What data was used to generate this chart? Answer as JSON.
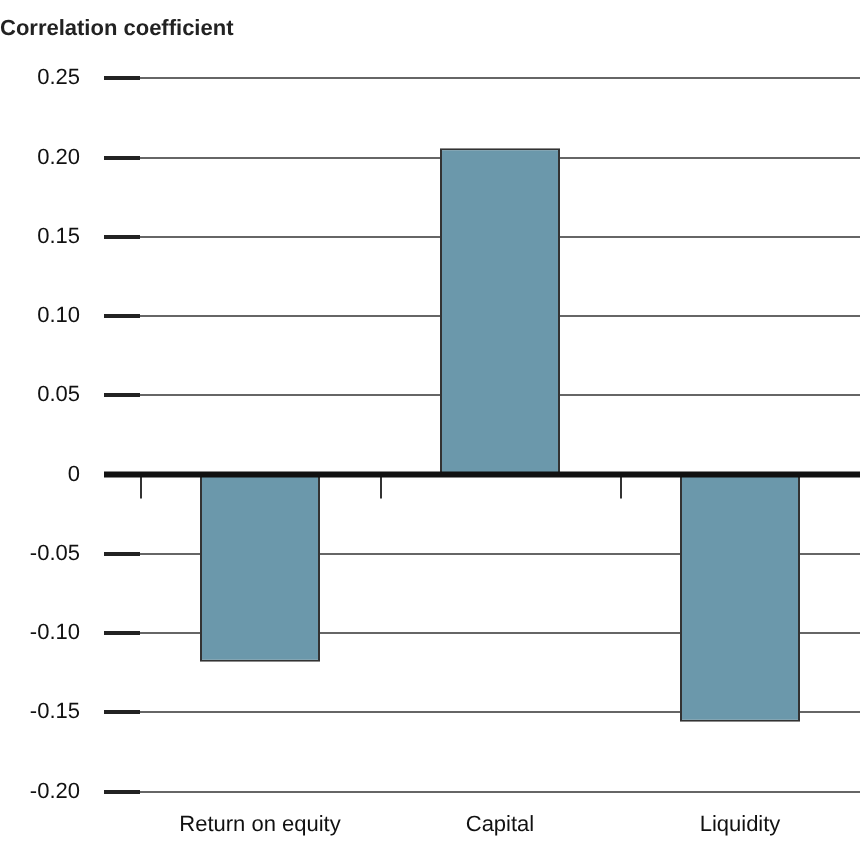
{
  "chart_data": {
    "type": "bar",
    "ylabel": "Correlation coefficient",
    "categories": [
      "Return on equity",
      "Capital",
      "Liquidity"
    ],
    "values": [
      -0.118,
      0.206,
      -0.156
    ],
    "color": "#6b98ab",
    "ylim": [
      -0.2,
      0.25
    ],
    "yticks": [
      {
        "value": -0.2,
        "label": "-0.20"
      },
      {
        "value": -0.15,
        "label": "-0.15"
      },
      {
        "value": -0.1,
        "label": "-0.10"
      },
      {
        "value": -0.05,
        "label": "-0.05"
      },
      0,
      {
        "value": 0.05,
        "label": "0.05"
      },
      {
        "value": 0.1,
        "label": "0.10"
      },
      {
        "value": 0.15,
        "label": "0.15"
      },
      {
        "value": 0.2,
        "label": "0.20"
      },
      {
        "value": 0.25,
        "label": "0.25"
      }
    ],
    "grid": "y",
    "legend": false
  }
}
